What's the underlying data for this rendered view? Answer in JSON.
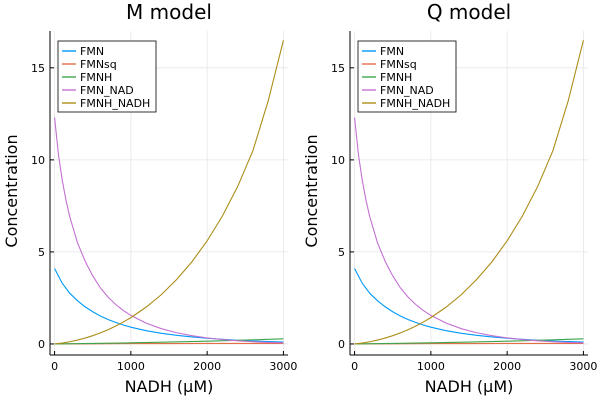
{
  "chart_data": [
    {
      "type": "line",
      "title": "M model",
      "xlabel": "NADH (μM)",
      "ylabel": "Concentration",
      "xlim": [
        -60,
        3060
      ],
      "ylim": [
        -0.6,
        17
      ],
      "xticks": [
        0,
        1000,
        2000,
        3000
      ],
      "yticks": [
        0,
        5,
        10,
        15
      ],
      "grid": true,
      "legend": "top-left",
      "series": [
        {
          "name": "FMN",
          "color": "#009AFA",
          "x": [
            0,
            100,
            200,
            300,
            400,
            500,
            600,
            700,
            800,
            900,
            1000,
            1200,
            1400,
            1600,
            1800,
            2000,
            2200,
            2400,
            2600,
            2800,
            3000
          ],
          "y": [
            4.1,
            3.3,
            2.75,
            2.35,
            2.02,
            1.75,
            1.52,
            1.33,
            1.17,
            1.03,
            0.91,
            0.72,
            0.58,
            0.47,
            0.38,
            0.31,
            0.25,
            0.2,
            0.16,
            0.13,
            0.1
          ]
        },
        {
          "name": "FMNsq",
          "color": "#E36F47",
          "x": [
            0,
            500,
            1000,
            1500,
            2000,
            2500,
            3000
          ],
          "y": [
            0.0,
            0.01,
            0.02,
            0.02,
            0.03,
            0.03,
            0.03
          ]
        },
        {
          "name": "FMNH",
          "color": "#3EA44E",
          "x": [
            0,
            500,
            1000,
            1500,
            2000,
            2500,
            3000
          ],
          "y": [
            0.0,
            0.03,
            0.06,
            0.1,
            0.15,
            0.21,
            0.28
          ]
        },
        {
          "name": "FMN_NAD",
          "color": "#C371D2",
          "x": [
            0,
            50,
            100,
            150,
            200,
            300,
            400,
            500,
            600,
            700,
            800,
            900,
            1000,
            1200,
            1400,
            1600,
            1800,
            2000,
            2200,
            2400,
            2600,
            2800,
            3000
          ],
          "y": [
            12.3,
            10.3,
            8.9,
            7.8,
            6.9,
            5.5,
            4.5,
            3.7,
            3.05,
            2.55,
            2.15,
            1.82,
            1.55,
            1.13,
            0.83,
            0.61,
            0.45,
            0.33,
            0.24,
            0.17,
            0.12,
            0.08,
            0.06
          ]
        },
        {
          "name": "FMNH_NADH",
          "color": "#AC8D18",
          "x": [
            0,
            100,
            200,
            300,
            400,
            500,
            600,
            700,
            800,
            900,
            1000,
            1200,
            1400,
            1600,
            1800,
            2000,
            2200,
            2400,
            2600,
            2800,
            3000
          ],
          "y": [
            0.0,
            0.05,
            0.12,
            0.21,
            0.32,
            0.45,
            0.6,
            0.77,
            0.97,
            1.19,
            1.43,
            2.0,
            2.68,
            3.5,
            4.46,
            5.6,
            6.95,
            8.55,
            10.5,
            13.2,
            16.5
          ]
        }
      ]
    },
    {
      "type": "line",
      "title": "Q model",
      "xlabel": "NADH (μM)",
      "ylabel": "Concentration",
      "xlim": [
        -60,
        3060
      ],
      "ylim": [
        -0.6,
        17
      ],
      "xticks": [
        0,
        1000,
        2000,
        3000
      ],
      "yticks": [
        0,
        5,
        10,
        15
      ],
      "grid": true,
      "legend": "top-left",
      "series": [
        {
          "name": "FMN",
          "color": "#009AFA",
          "x": [
            0,
            100,
            200,
            300,
            400,
            500,
            600,
            700,
            800,
            900,
            1000,
            1200,
            1400,
            1600,
            1800,
            2000,
            2200,
            2400,
            2600,
            2800,
            3000
          ],
          "y": [
            4.1,
            3.3,
            2.75,
            2.35,
            2.02,
            1.75,
            1.52,
            1.33,
            1.17,
            1.03,
            0.91,
            0.72,
            0.58,
            0.47,
            0.38,
            0.31,
            0.25,
            0.2,
            0.16,
            0.13,
            0.1
          ]
        },
        {
          "name": "FMNsq",
          "color": "#E36F47",
          "x": [
            0,
            500,
            1000,
            1500,
            2000,
            2500,
            3000
          ],
          "y": [
            0.0,
            0.01,
            0.02,
            0.02,
            0.03,
            0.03,
            0.03
          ]
        },
        {
          "name": "FMNH",
          "color": "#3EA44E",
          "x": [
            0,
            500,
            1000,
            1500,
            2000,
            2500,
            3000
          ],
          "y": [
            0.0,
            0.03,
            0.06,
            0.1,
            0.15,
            0.21,
            0.28
          ]
        },
        {
          "name": "FMN_NAD",
          "color": "#C371D2",
          "x": [
            0,
            50,
            100,
            150,
            200,
            300,
            400,
            500,
            600,
            700,
            800,
            900,
            1000,
            1200,
            1400,
            1600,
            1800,
            2000,
            2200,
            2400,
            2600,
            2800,
            3000
          ],
          "y": [
            12.3,
            10.3,
            8.9,
            7.8,
            6.9,
            5.5,
            4.5,
            3.7,
            3.05,
            2.55,
            2.15,
            1.82,
            1.55,
            1.13,
            0.83,
            0.61,
            0.45,
            0.33,
            0.24,
            0.17,
            0.12,
            0.08,
            0.06
          ]
        },
        {
          "name": "FMNH_NADH",
          "color": "#AC8D18",
          "x": [
            0,
            100,
            200,
            300,
            400,
            500,
            600,
            700,
            800,
            900,
            1000,
            1200,
            1400,
            1600,
            1800,
            2000,
            2200,
            2400,
            2600,
            2800,
            3000
          ],
          "y": [
            0.0,
            0.05,
            0.12,
            0.21,
            0.32,
            0.45,
            0.6,
            0.77,
            0.97,
            1.19,
            1.43,
            2.0,
            2.68,
            3.5,
            4.46,
            5.6,
            6.95,
            8.55,
            10.5,
            13.2,
            16.5
          ]
        }
      ]
    }
  ]
}
